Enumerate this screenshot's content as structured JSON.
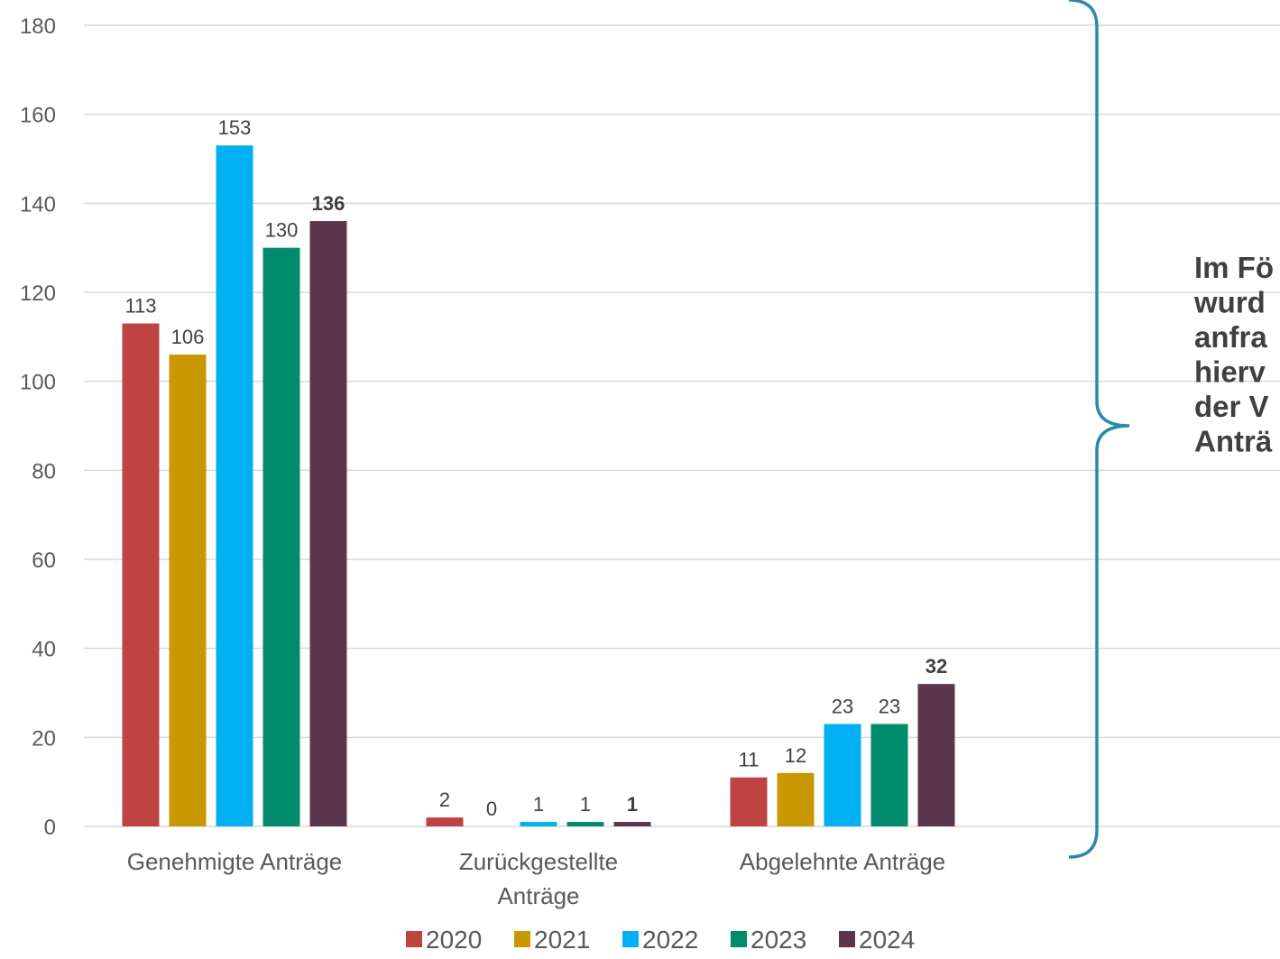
{
  "chart_data": {
    "type": "bar",
    "categories": [
      "Genehmigte Anträge",
      "Zurückgestellte Anträge",
      "Abgelehnte Anträge"
    ],
    "category_lines": [
      [
        "Genehmigte Anträge"
      ],
      [
        "Zurückgestellte",
        "Anträge"
      ],
      [
        "Abgelehnte Anträge"
      ]
    ],
    "series": [
      {
        "name": "2020",
        "color": "#be4444",
        "values": [
          113,
          2,
          11
        ],
        "bold_labels": false
      },
      {
        "name": "2021",
        "color": "#c99800",
        "values": [
          106,
          0,
          12
        ],
        "bold_labels": false
      },
      {
        "name": "2022",
        "color": "#00b0f0",
        "values": [
          153,
          1,
          23
        ],
        "bold_labels": false
      },
      {
        "name": "2023",
        "color": "#008c6c",
        "values": [
          130,
          1,
          23
        ],
        "bold_labels": false
      },
      {
        "name": "2024",
        "color": "#5c344c",
        "values": [
          136,
          1,
          32
        ],
        "bold_labels": true
      }
    ],
    "ylim": [
      0,
      180
    ],
    "yticks": [
      "0",
      "20",
      "40",
      "60",
      "80",
      "100",
      "120",
      "140",
      "160",
      "180"
    ],
    "grid": true,
    "legend_position": "bottom"
  },
  "side_note": {
    "lines": [
      "Im Fö",
      "wurd",
      "anfra",
      "hierv",
      "der  V",
      "Anträ"
    ],
    "bracket_color": "#2a8aa8"
  }
}
